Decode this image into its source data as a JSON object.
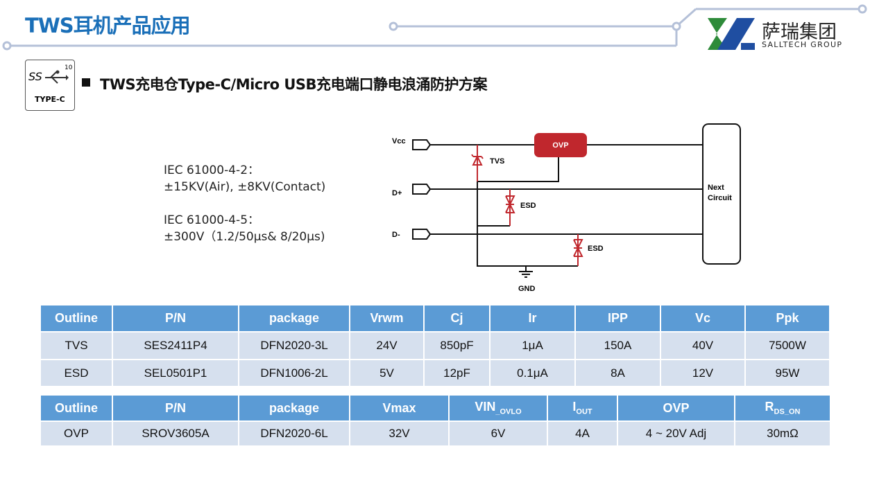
{
  "header": {
    "title": "TWS耳机产品应用",
    "logo_cn": "萨瑞集团",
    "logo_en": "SALLTECH GROUP"
  },
  "section": {
    "icon_ss": "SS",
    "icon_num": "10",
    "icon_label": "TYPE-C",
    "title": "TWS充电仓Type-C/Micro USB充电端口静电浪涌防护方案"
  },
  "standards": [
    {
      "name": "IEC 61000-4-2：",
      "value": "±15KV(Air), ±8KV(Contact)"
    },
    {
      "name": "IEC 61000-4-5：",
      "value": "±300V（1.2/50μs& 8/20μs)"
    }
  ],
  "circuit": {
    "vcc": "Vcc",
    "dplus": "D+",
    "dminus": "D-",
    "ovp": "OVP",
    "tvs": "TVS",
    "esd1": "ESD",
    "esd2": "ESD",
    "gnd": "GND",
    "next1": "Next",
    "next2": "Circuit",
    "red": "#c0272d"
  },
  "table1": {
    "headers": [
      "Outline",
      "P/N",
      "package",
      "Vrwm",
      "Cj",
      "Ir",
      "IPP",
      "Vc",
      "Ppk"
    ],
    "rows": [
      [
        "TVS",
        "SES2411P4",
        "DFN2020-3L",
        "24V",
        "850pF",
        "1μA",
        "150A",
        "40V",
        "7500W"
      ],
      [
        "ESD",
        "SEL0501P1",
        "DFN1006-2L",
        "5V",
        "12pF",
        "0.1μA",
        "8A",
        "12V",
        "95W"
      ]
    ]
  },
  "table2": {
    "headers": [
      "Outline",
      "P/N",
      "package",
      "Vmax",
      "VIN",
      "_OVLO",
      "I",
      "OUT",
      "OVP",
      "R",
      "DS_ON"
    ],
    "rows": [
      [
        "OVP",
        "SROV3605A",
        "DFN2020-6L",
        "32V",
        "6V",
        "4A",
        "4 ~ 20V Adj",
        "30mΩ"
      ]
    ]
  }
}
